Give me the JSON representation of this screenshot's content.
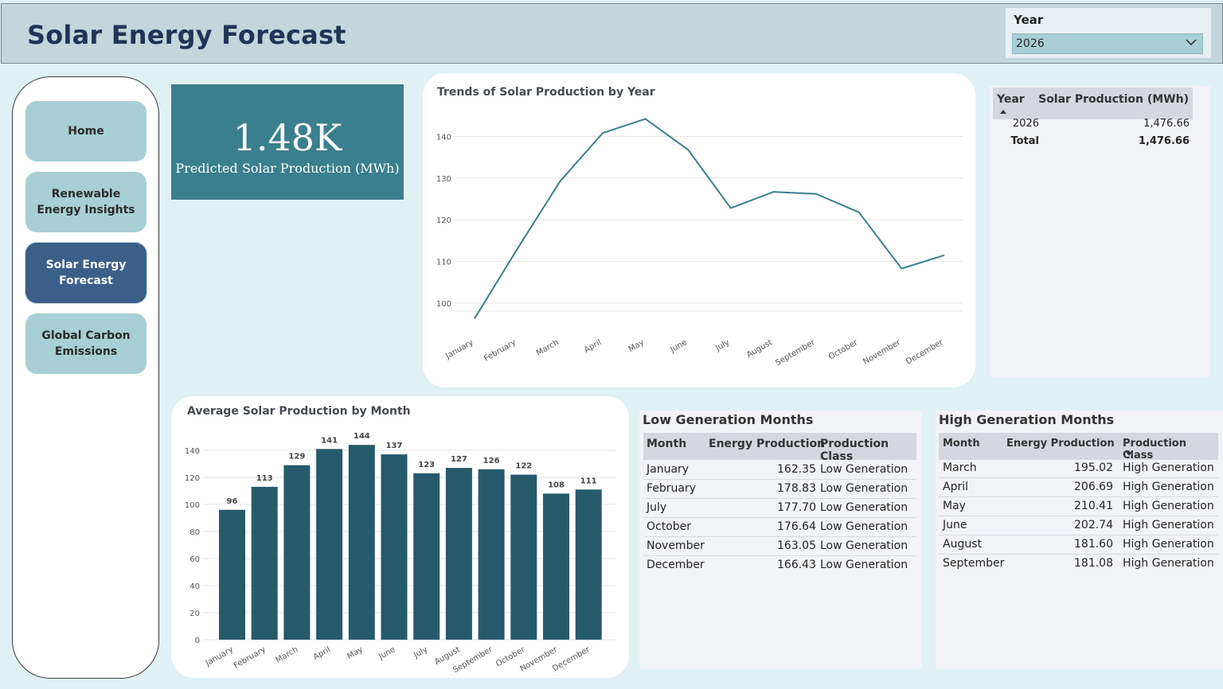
{
  "header": {
    "title": "Solar Energy Forecast"
  },
  "slicer": {
    "label": "Year",
    "value": "2026"
  },
  "nav": {
    "items": [
      {
        "label": "Home",
        "active": false
      },
      {
        "label": "Renewable Energy Insights",
        "active": false
      },
      {
        "label": "Solar Energy Forecast",
        "active": true
      },
      {
        "label": "Global Carbon Emissions",
        "active": false
      }
    ]
  },
  "kpi": {
    "value": "1.48K",
    "label": "Predicted Solar Production (MWh)"
  },
  "year_table": {
    "headers": [
      "Year",
      "Solar Production (MWh)"
    ],
    "rows": [
      {
        "year": "2026",
        "value": "1,476.66"
      }
    ],
    "total": {
      "label": "Total",
      "value": "1,476.66"
    }
  },
  "low_table": {
    "title": "Low Generation Months",
    "headers": [
      "Month",
      "Energy Production",
      "Production Class"
    ],
    "rows": [
      {
        "month": "January",
        "energy": "162.35",
        "class": "Low Generation"
      },
      {
        "month": "February",
        "energy": "178.83",
        "class": "Low Generation"
      },
      {
        "month": "July",
        "energy": "177.70",
        "class": "Low Generation"
      },
      {
        "month": "October",
        "energy": "176.64",
        "class": "Low Generation"
      },
      {
        "month": "November",
        "energy": "163.05",
        "class": "Low Generation"
      },
      {
        "month": "December",
        "energy": "166.43",
        "class": "Low Generation"
      }
    ]
  },
  "high_table": {
    "title": "High Generation Months",
    "headers": [
      "Month",
      "Energy Production",
      "Production Class"
    ],
    "rows": [
      {
        "month": "March",
        "energy": "195.02",
        "class": "High Generation"
      },
      {
        "month": "April",
        "energy": "206.69",
        "class": "High Generation"
      },
      {
        "month": "May",
        "energy": "210.41",
        "class": "High Generation"
      },
      {
        "month": "June",
        "energy": "202.74",
        "class": "High Generation"
      },
      {
        "month": "August",
        "energy": "181.60",
        "class": "High Generation"
      },
      {
        "month": "September",
        "energy": "181.08",
        "class": "High Generation"
      }
    ]
  },
  "colors": {
    "line": "#3a7f8d",
    "bar": "#265a6b",
    "kpi": "#3a7f8d",
    "nav_active": "#3c5f89",
    "nav_button": "#a7cfd5"
  },
  "chart_data": [
    {
      "type": "line",
      "title": "Trends of Solar Production by Year",
      "categories": [
        "January",
        "February",
        "March",
        "April",
        "May",
        "June",
        "July",
        "August",
        "September",
        "October",
        "November",
        "December"
      ],
      "values": [
        96.3,
        113.0,
        129.2,
        140.8,
        144.2,
        136.8,
        122.8,
        126.7,
        126.2,
        121.8,
        108.3,
        111.5
      ],
      "yticks": [
        100,
        110,
        120,
        130,
        140
      ],
      "ylim": [
        96,
        146
      ],
      "grid": true
    },
    {
      "type": "bar",
      "title": "Average Solar Production by Month",
      "categories": [
        "January",
        "February",
        "March",
        "April",
        "May",
        "June",
        "July",
        "August",
        "September",
        "October",
        "November",
        "December"
      ],
      "values": [
        96,
        113,
        129,
        141,
        144,
        137,
        123,
        127,
        126,
        122,
        108,
        111
      ],
      "yticks": [
        0,
        20,
        40,
        60,
        80,
        100,
        120,
        140
      ],
      "ylim": [
        0,
        150
      ],
      "grid": true
    }
  ]
}
